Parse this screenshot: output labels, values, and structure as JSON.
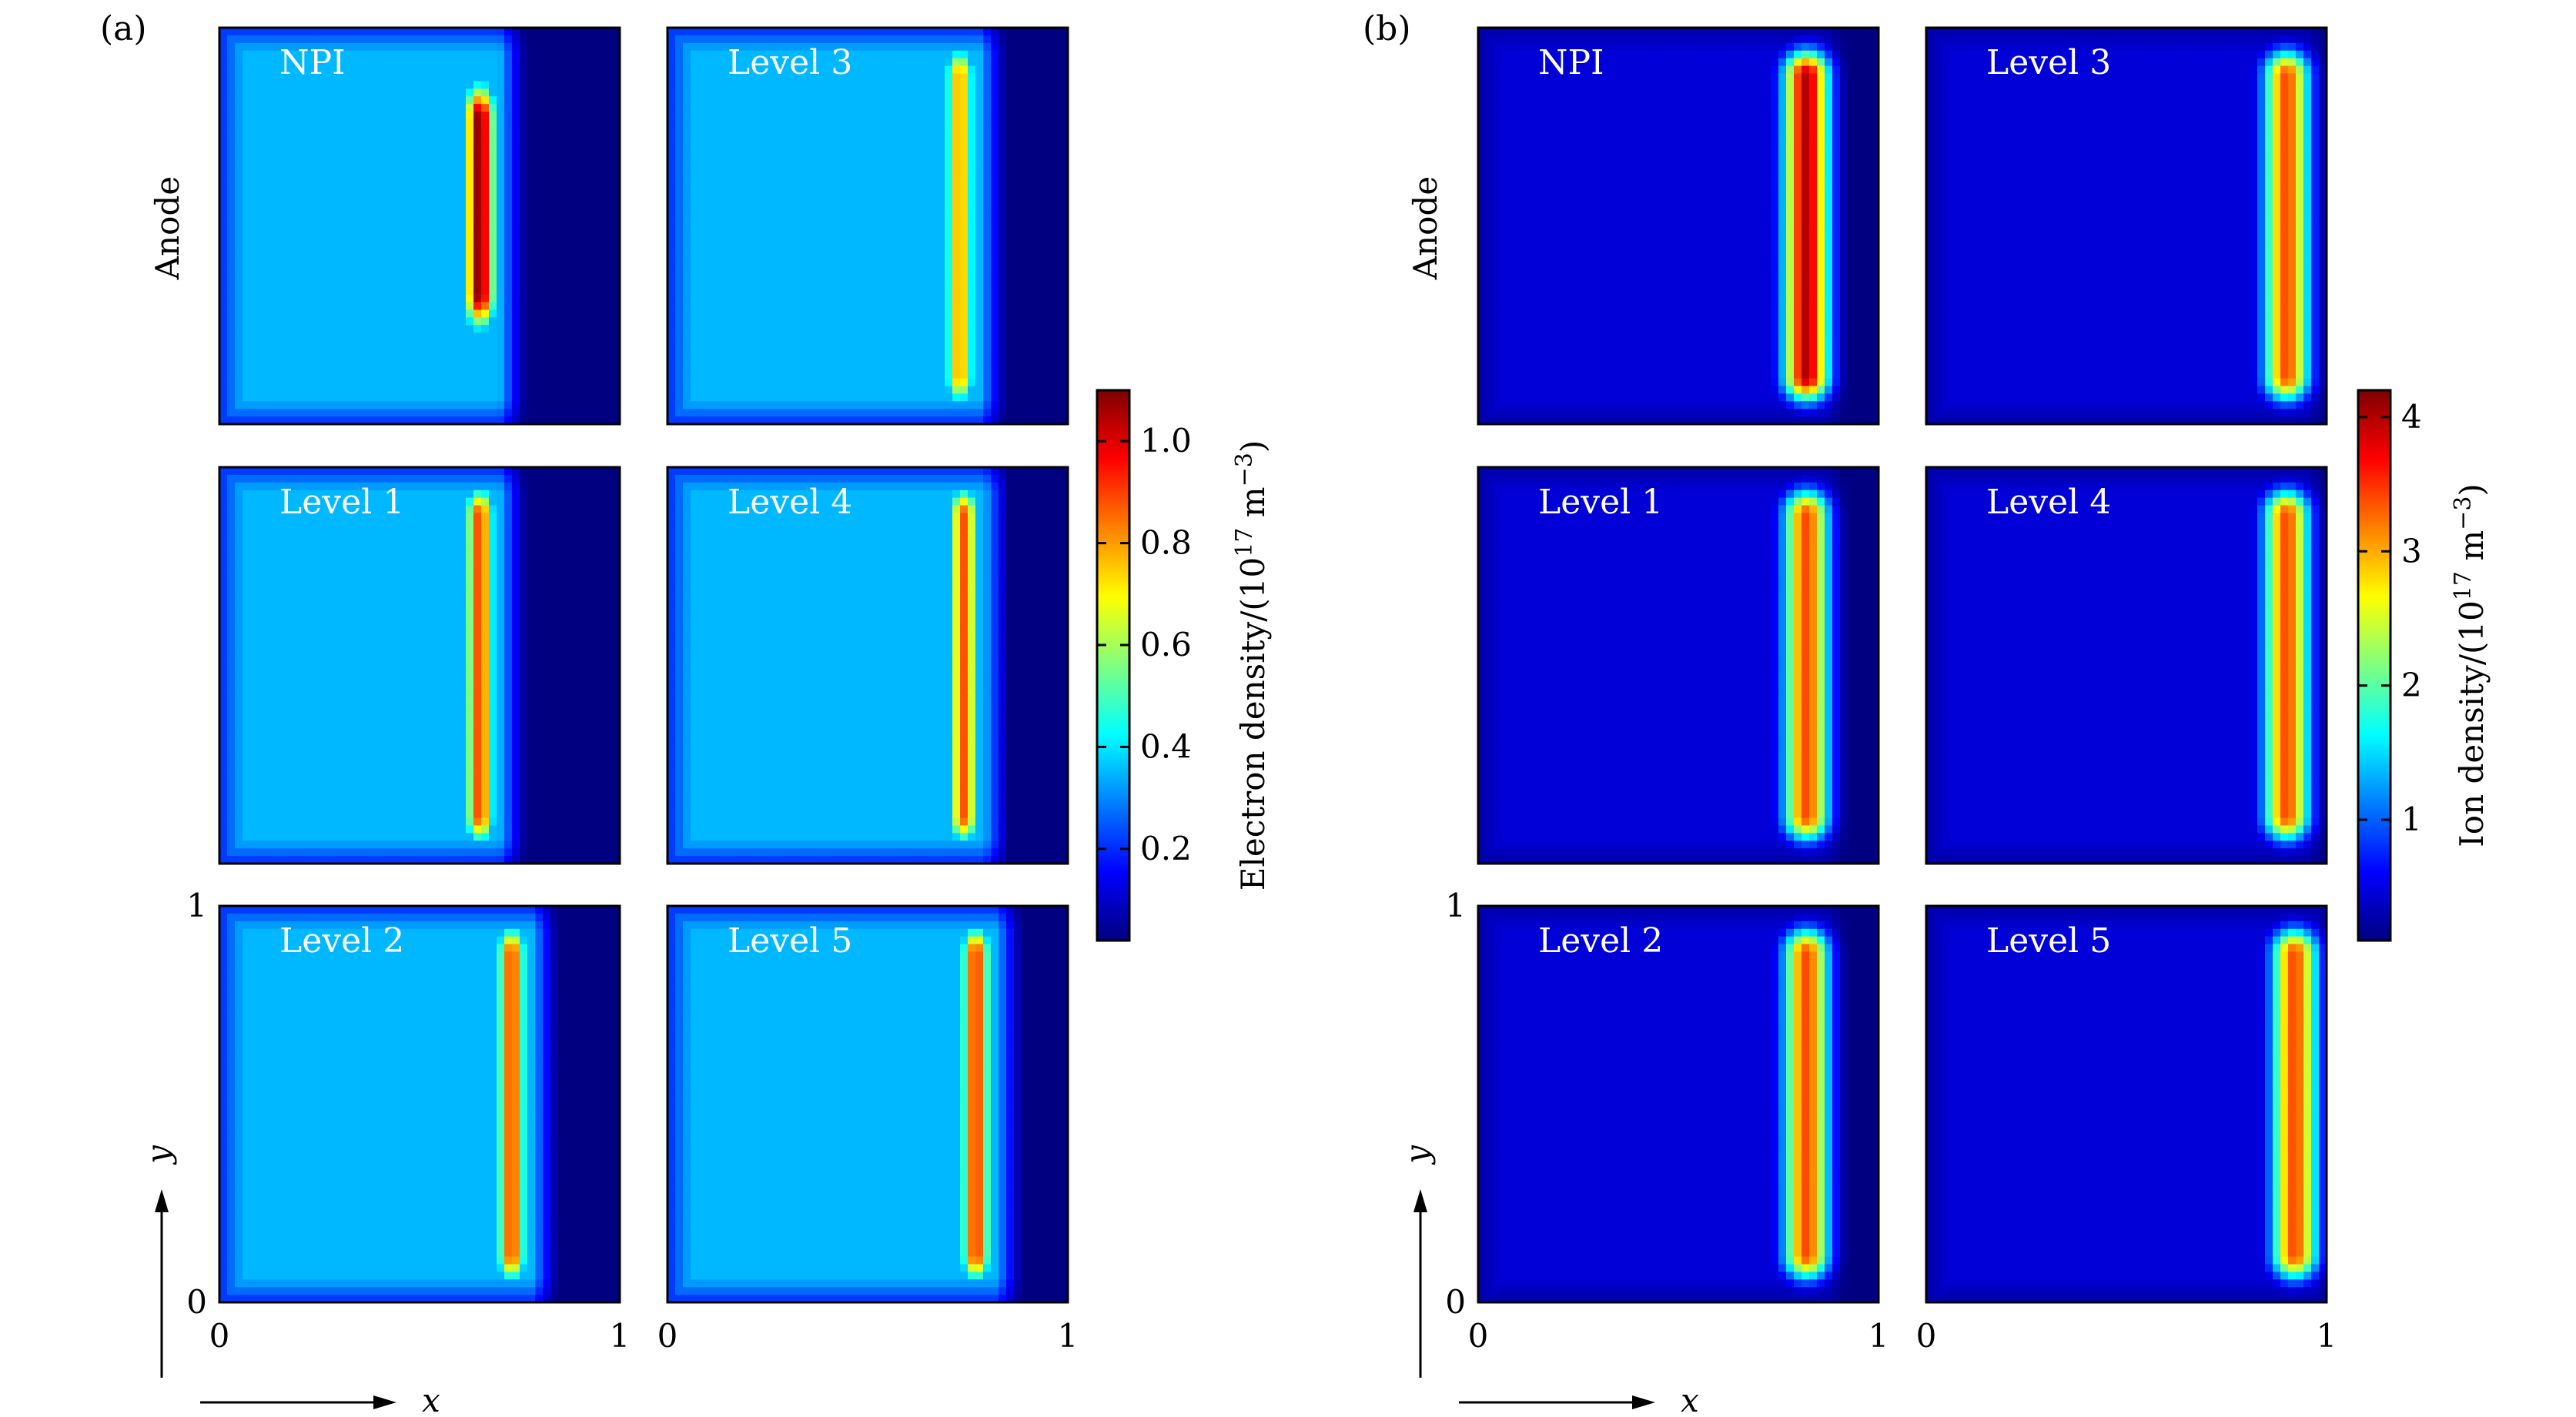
{
  "chart_data": [
    {
      "type": "heatmap",
      "panel_label": "(a)",
      "panels": [
        "NPI",
        "Level 3",
        "Level 1",
        "Level 4",
        "Level 2",
        "Level 5"
      ],
      "row_label": "Anode",
      "xlabel": "x",
      "ylabel": "y",
      "xticks": [
        "0",
        "1",
        "0",
        "1"
      ],
      "yticks": [
        "0",
        "1"
      ],
      "xlim": [
        0,
        1
      ],
      "ylim": [
        0,
        1
      ],
      "colorbar": {
        "label": "Electron density/(10",
        "label_exp": "17",
        "label_unit": " m",
        "label_unit_exp": "−3",
        "label_tail": ")",
        "ticks": [
          "0.2",
          "0.4",
          "0.6",
          "0.8",
          "1.0"
        ],
        "tick_values": [
          0.2,
          0.4,
          0.6,
          0.8,
          1.0
        ],
        "range": [
          0.02,
          1.1
        ],
        "colormap": "jet"
      },
      "field": {
        "background": 0.35,
        "peak": [
          1.1,
          0.8,
          0.9,
          0.88,
          0.9,
          0.92
        ],
        "peak_x": [
          0.65,
          0.73,
          0.65,
          0.74,
          0.73,
          0.77
        ]
      }
    },
    {
      "type": "heatmap",
      "panel_label": "(b)",
      "panels": [
        "NPI",
        "Level 3",
        "Level 1",
        "Level 4",
        "Level 2",
        "Level 5"
      ],
      "row_label": "Anode",
      "xlabel": "x",
      "ylabel": "y",
      "xticks": [
        "0",
        "1",
        "0",
        "1"
      ],
      "yticks": [
        "0",
        "1"
      ],
      "xlim": [
        0,
        1
      ],
      "ylim": [
        0,
        1
      ],
      "colorbar": {
        "label": "Ion density/(10",
        "label_exp": "17",
        "label_unit": " m",
        "label_unit_exp": "−3",
        "label_tail": ")",
        "ticks": [
          "1",
          "2",
          "3",
          "4"
        ],
        "tick_values": [
          1,
          2,
          3,
          4
        ],
        "range": [
          0.1,
          4.2
        ],
        "colormap": "jet"
      },
      "field": {
        "background": 0.45,
        "peak": [
          4.0,
          3.4,
          3.4,
          3.4,
          3.4,
          3.4
        ],
        "peak_x": [
          0.82,
          0.9,
          0.82,
          0.9,
          0.82,
          0.92
        ]
      }
    }
  ],
  "colors": {
    "jet_low": "#00007f",
    "jet_high": "#7f0000"
  }
}
